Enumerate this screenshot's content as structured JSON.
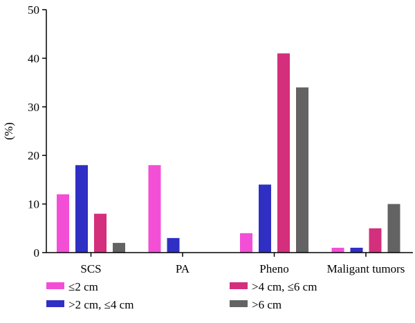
{
  "chart_data": {
    "type": "bar",
    "title": "",
    "xlabel": "",
    "ylabel": "(%)",
    "ylim": [
      0,
      50
    ],
    "yticks": [
      0,
      10,
      20,
      30,
      40,
      50
    ],
    "grid": false,
    "legend_position": "bottom",
    "categories": [
      "SCS",
      "PA",
      "Pheno",
      "Maligant tumors"
    ],
    "series": [
      {
        "name": "≤2 cm",
        "color": "#f24fd6",
        "values": [
          12,
          18,
          4,
          1
        ]
      },
      {
        "name": ">2 cm, ≤4 cm",
        "color": "#2f2fc4",
        "values": [
          18,
          3,
          14,
          1
        ]
      },
      {
        "name": ">4 cm, ≤6 cm",
        "color": "#d42f7d",
        "values": [
          8,
          0,
          41,
          5
        ]
      },
      {
        "name": ">6 cm",
        "color": "#636363",
        "values": [
          2,
          0,
          34,
          10
        ]
      }
    ]
  }
}
